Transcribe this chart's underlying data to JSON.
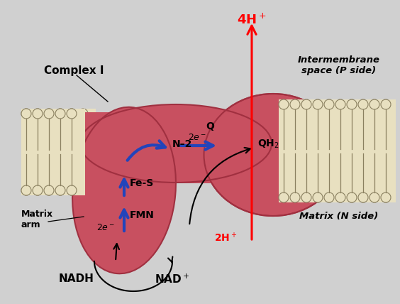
{
  "background_color": "#d0d0d0",
  "complex_color": "#c85060",
  "complex_edge": "#a03040",
  "complex_light": "#d87080",
  "mem_fill": "#e8e0c0",
  "mem_edge": "#8a8060",
  "black": "#000000",
  "red": "#cc0000",
  "blue_arrow": "#2244bb",
  "labels": {
    "complex_i": "Complex I",
    "intermembrane": "Intermembrane\nspace (P side)",
    "matrix": "Matrix (N side)",
    "matrix_arm": "Matrix\narm",
    "nadh": "NADH",
    "nad_plus": "NAD$^+$",
    "fmn": "FMN",
    "fe_s": "Fe-S",
    "n2": "N–2",
    "q": "Q",
    "qh2": "QH$_2$",
    "2e_lower": "2$e^-$",
    "2e_upper": "2$e^-$",
    "2h_plus": "2H$^+$",
    "4h_plus": "4H$^+$"
  }
}
